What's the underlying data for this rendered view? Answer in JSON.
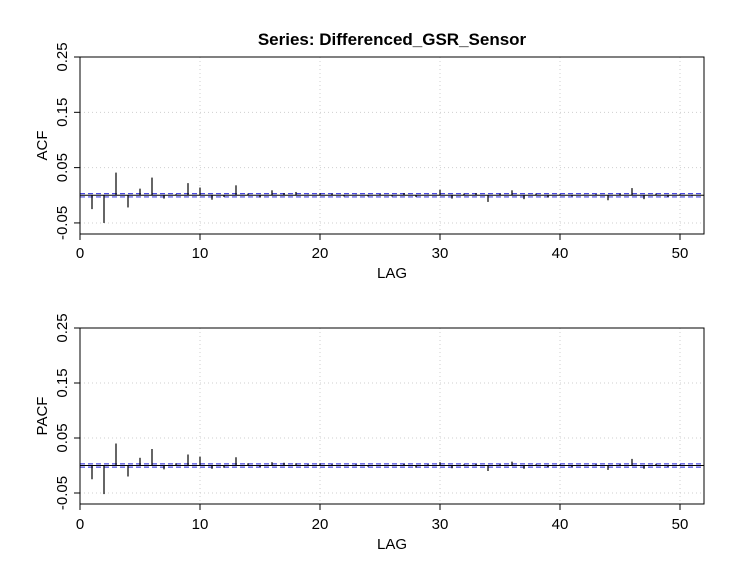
{
  "title": "Series:  Differenced_GSR_Sensor",
  "colors": {
    "spike": "#000000",
    "conf_band": "#4a4ae0",
    "grid": "#cfcfcf",
    "frame": "#000000"
  },
  "chart_data": [
    {
      "type": "bar",
      "subtype": "acf",
      "ylabel": "ACF",
      "xlabel": "LAG",
      "xlim": [
        0,
        52
      ],
      "ylim": [
        -0.07,
        0.25
      ],
      "xticks": [
        "0",
        "10",
        "20",
        "30",
        "40",
        "50"
      ],
      "xtick_values": [
        0,
        10,
        20,
        30,
        40,
        50
      ],
      "yticks": [
        "-0.05",
        "0.05",
        "0.15",
        "0.25"
      ],
      "ytick_values": [
        -0.05,
        0.05,
        0.15,
        0.25
      ],
      "grid": true,
      "confidence_band": 0.003,
      "lags": [
        1,
        2,
        3,
        4,
        5,
        6,
        7,
        8,
        9,
        10,
        11,
        12,
        13,
        14,
        15,
        16,
        17,
        18,
        19,
        20,
        21,
        22,
        23,
        24,
        25,
        26,
        27,
        28,
        29,
        30,
        31,
        32,
        33,
        34,
        35,
        36,
        37,
        38,
        39,
        40,
        41,
        42,
        43,
        44,
        45,
        46,
        47,
        48,
        49,
        50,
        51
      ],
      "values": [
        -0.025,
        -0.05,
        0.041,
        -0.022,
        0.012,
        0.032,
        -0.006,
        0.002,
        0.022,
        0.014,
        -0.008,
        -0.003,
        0.018,
        0.003,
        -0.004,
        0.009,
        0.004,
        0.006,
        0.001,
        0.004,
        0.003,
        -0.002,
        0.001,
        -0.002,
        0.002,
        -0.002,
        0.004,
        -0.003,
        0.001,
        0.01,
        -0.006,
        0.003,
        0.004,
        -0.012,
        0.003,
        0.009,
        -0.007,
        0.003,
        -0.004,
        0.002,
        -0.002,
        0.001,
        0.002,
        -0.009,
        0.003,
        0.013,
        -0.007,
        0.003,
        -0.003,
        0.002,
        -0.001
      ]
    },
    {
      "type": "bar",
      "subtype": "pacf",
      "ylabel": "PACF",
      "xlabel": "LAG",
      "xlim": [
        0,
        52
      ],
      "ylim": [
        -0.07,
        0.25
      ],
      "xticks": [
        "0",
        "10",
        "20",
        "30",
        "40",
        "50"
      ],
      "xtick_values": [
        0,
        10,
        20,
        30,
        40,
        50
      ],
      "yticks": [
        "-0.05",
        "0.05",
        "0.15",
        "0.25"
      ],
      "ytick_values": [
        -0.05,
        0.05,
        0.15,
        0.25
      ],
      "grid": true,
      "confidence_band": 0.003,
      "lags": [
        1,
        2,
        3,
        4,
        5,
        6,
        7,
        8,
        9,
        10,
        11,
        12,
        13,
        14,
        15,
        16,
        17,
        18,
        19,
        20,
        21,
        22,
        23,
        24,
        25,
        26,
        27,
        28,
        29,
        30,
        31,
        32,
        33,
        34,
        35,
        36,
        37,
        38,
        39,
        40,
        41,
        42,
        43,
        44,
        45,
        46,
        47,
        48,
        49,
        50,
        51
      ],
      "values": [
        -0.025,
        -0.052,
        0.04,
        -0.02,
        0.014,
        0.03,
        -0.007,
        0.004,
        0.02,
        0.016,
        -0.006,
        -0.004,
        0.015,
        0.004,
        -0.003,
        0.006,
        0.005,
        0.004,
        0.002,
        0.004,
        0.002,
        -0.001,
        0.002,
        -0.002,
        0.001,
        -0.001,
        0.003,
        -0.004,
        0.002,
        0.006,
        -0.005,
        0.002,
        0.003,
        -0.01,
        0.002,
        0.007,
        -0.006,
        0.002,
        -0.003,
        0.002,
        -0.003,
        0.001,
        0.002,
        -0.008,
        0.002,
        0.012,
        -0.006,
        0.003,
        -0.002,
        0.002,
        -0.001
      ]
    }
  ]
}
